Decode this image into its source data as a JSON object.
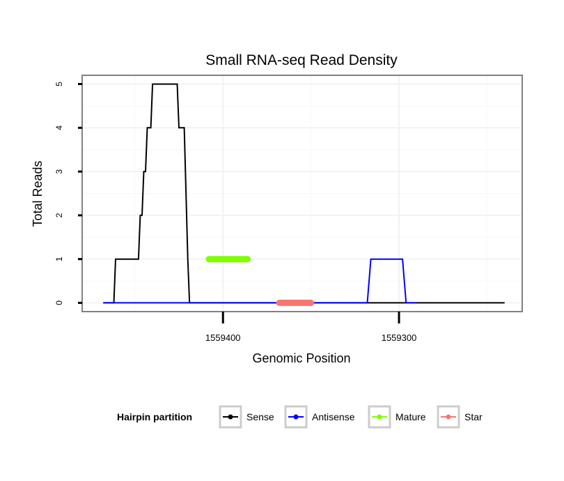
{
  "chart_data": {
    "type": "line",
    "title": "Small RNA-seq Read Density",
    "xlabel": "Genomic Position",
    "ylabel": "Total Reads",
    "x_reversed": true,
    "xlim": [
      1559480,
      1559230
    ],
    "ylim": [
      -0.2,
      5.2
    ],
    "x_ticks": [
      1559400,
      1559300
    ],
    "x_tick_labels": [
      "1559400",
      "1559300"
    ],
    "y_ticks": [
      0,
      1,
      2,
      3,
      4,
      5
    ],
    "y_tick_labels": [
      "0",
      "1",
      "2",
      "3",
      "4",
      "5"
    ],
    "grid": true,
    "legend": {
      "title": "Hairpin partition",
      "position": "bottom",
      "entries": [
        "Sense",
        "Antisense",
        "Mature",
        "Star"
      ]
    },
    "series": [
      {
        "name": "Sense",
        "color": "#000000",
        "style": "line",
        "x": [
          1559468,
          1559462,
          1559461,
          1559448,
          1559447,
          1559446,
          1559445,
          1559444,
          1559443,
          1559441,
          1559440,
          1559438,
          1559437,
          1559426,
          1559425,
          1559423,
          1559422,
          1559420,
          1559419,
          1559415,
          1559415,
          1559410,
          1559408,
          1559385,
          1559384,
          1559240
        ],
        "y": [
          0,
          0,
          1,
          1,
          2,
          2,
          3,
          3,
          4,
          4,
          5,
          5,
          5,
          5,
          4,
          4,
          4,
          1,
          0,
          0,
          0,
          0,
          0,
          0,
          0,
          0
        ]
      },
      {
        "name": "Antisense",
        "color": "#0000ff",
        "style": "line",
        "x": [
          1559468,
          1559318,
          1559316,
          1559298,
          1559296,
          1559290
        ],
        "y": [
          0,
          0,
          1,
          1,
          0,
          0
        ]
      },
      {
        "name": "Mature",
        "color": "#7fff00",
        "style": "thick",
        "x": [
          1559408,
          1559386
        ],
        "y": [
          1,
          1
        ]
      },
      {
        "name": "Star",
        "color": "#f8766d",
        "style": "thick",
        "x": [
          1559368,
          1559350
        ],
        "y": [
          0,
          0
        ]
      }
    ]
  }
}
